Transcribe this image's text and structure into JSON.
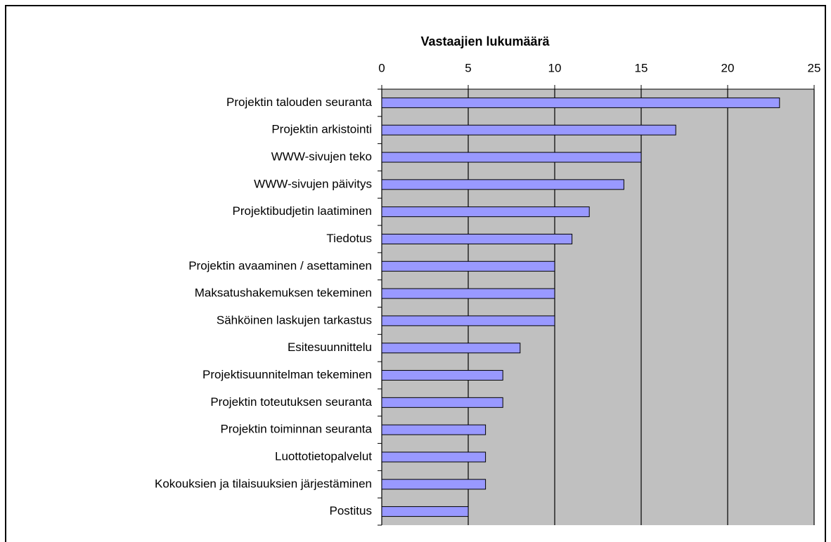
{
  "chart_data": {
    "type": "bar",
    "horizontal": true,
    "x_label": "Vastaajien lukumäärä",
    "categories": [
      "Projektin talouden seuranta",
      "Projektin arkistointi",
      "WWW-sivujen teko",
      "WWW-sivujen päivitys",
      "Projektibudjetin laatiminen",
      "Tiedotus",
      "Projektin avaaminen / asettaminen",
      "Maksatushakemuksen tekeminen",
      "Sähköinen laskujen tarkastus",
      "Esitesuunnittelu",
      "Projektisuunnitelman tekeminen",
      "Projektin toteutuksen seuranta",
      "Projektin toiminnan seuranta",
      "Luottotietopalvelut",
      "Kokouksien ja tilaisuuksien järjestäminen",
      "Postitus"
    ],
    "values": [
      23,
      17,
      15,
      14,
      12,
      11,
      10,
      10,
      10,
      8,
      7,
      7,
      6,
      6,
      6,
      5
    ],
    "color": "#9999ff",
    "plot_background": "#c0c0c0",
    "xlim": [
      0,
      25
    ],
    "xticks": [
      0,
      5,
      10,
      15,
      20,
      25
    ],
    "grid": true
  }
}
